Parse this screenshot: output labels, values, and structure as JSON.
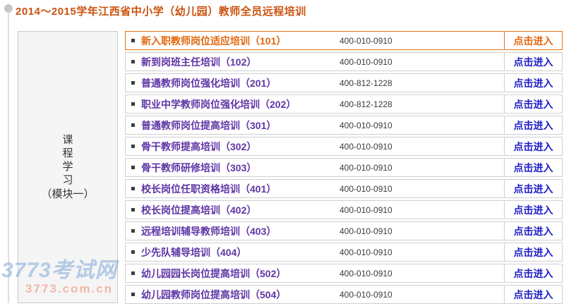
{
  "page": {
    "title": "2014～2015学年江西省中小学（幼儿园）教师全员远程培训"
  },
  "sidebar": {
    "label_main": "课\n程\n学\n习",
    "label_suffix": "（模块一）"
  },
  "table": {
    "action_label": "点击进入",
    "rows": [
      {
        "name": "新入职教师岗位适应培训（101）",
        "phone": "400-010-0910",
        "highlighted": true
      },
      {
        "name": "新到岗班主任培训（102）",
        "phone": "400-010-0910",
        "highlighted": false
      },
      {
        "name": "普通教师岗位强化培训（201）",
        "phone": "400-812-1228",
        "highlighted": false
      },
      {
        "name": "职业中学教师岗位强化培训（202）",
        "phone": "400-812-1228",
        "highlighted": false
      },
      {
        "name": "普通教师岗位提高培训（301）",
        "phone": "400-010-0910",
        "highlighted": false
      },
      {
        "name": "骨干教师提高培训（302）",
        "phone": "400-010-0910",
        "highlighted": false
      },
      {
        "name": "骨干教师研修培训（303）",
        "phone": "400-010-0910",
        "highlighted": false
      },
      {
        "name": "校长岗位任职资格培训（401）",
        "phone": "400-010-0910",
        "highlighted": false
      },
      {
        "name": "校长岗位提高培训（402）",
        "phone": "400-010-0910",
        "highlighted": false
      },
      {
        "name": "远程培训辅导教师培训（403）",
        "phone": "400-010-0910",
        "highlighted": false
      },
      {
        "name": "少先队辅导培训（404）",
        "phone": "400-010-0910",
        "highlighted": false
      },
      {
        "name": "幼儿园园长岗位提高培训（502）",
        "phone": "400-010-0910",
        "highlighted": false
      },
      {
        "name": "幼儿园教师岗位提高培训（504）",
        "phone": "400-010-0910",
        "highlighted": false
      }
    ]
  },
  "watermark": {
    "line1": "3773考试网",
    "line2": "3773.com.cn"
  },
  "colors": {
    "title_orange": "#cb520e",
    "course_purple": "#5e35a5",
    "link_blue": "#1c1cc8",
    "highlight_orange": "#e2731c",
    "row_border_gray": "#cfcfcf",
    "module_cell_bg": "#f5f5f5"
  }
}
